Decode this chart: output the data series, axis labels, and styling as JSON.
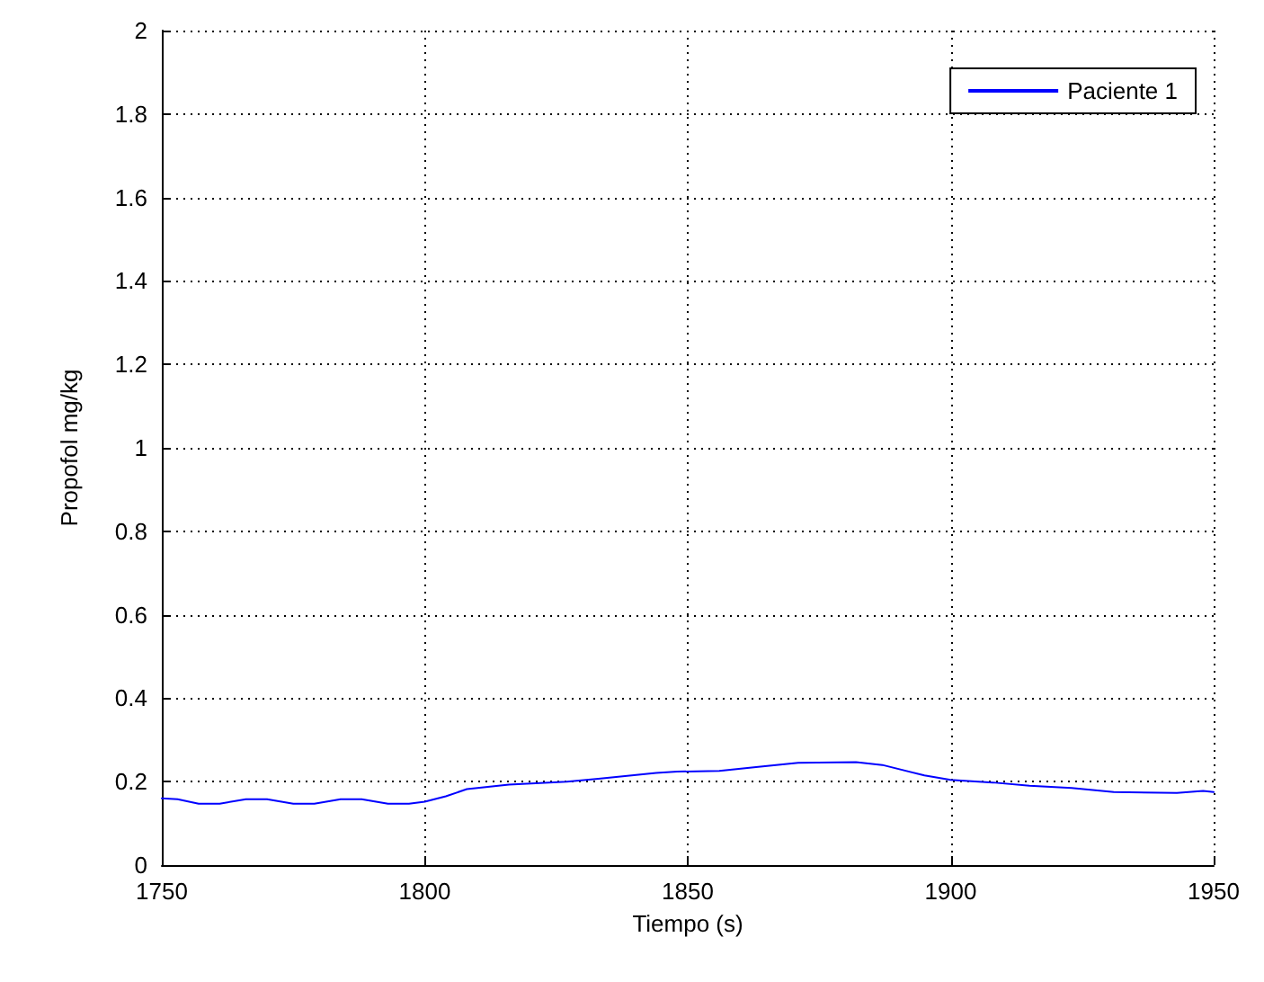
{
  "chart_data": {
    "type": "line",
    "xlabel": "Tiempo (s)",
    "ylabel": "Propofol mg/kg",
    "xlim": [
      1750,
      1950
    ],
    "xticks": [
      1750,
      1800,
      1850,
      1900,
      1950
    ],
    "ylim": [
      0,
      2
    ],
    "yticks": [
      0,
      0.2,
      0.4,
      0.6,
      0.8,
      1,
      1.2,
      1.4,
      1.6,
      1.8,
      2
    ],
    "grid": true,
    "legend": "top right",
    "line_style": "solid",
    "marker": "none",
    "series": [
      {
        "name": "Paciente 1",
        "color": "#0000ff",
        "x": [
          1750,
          1753,
          1757,
          1761,
          1766,
          1770,
          1775,
          1779,
          1784,
          1788,
          1793,
          1797,
          1800,
          1804,
          1808,
          1816,
          1827,
          1833,
          1844,
          1848,
          1856,
          1863,
          1871,
          1882,
          1887,
          1895,
          1900,
          1908,
          1915,
          1923,
          1931,
          1943,
          1948,
          1950
        ],
        "values": [
          0.16,
          0.158,
          0.147,
          0.147,
          0.158,
          0.158,
          0.147,
          0.147,
          0.158,
          0.158,
          0.147,
          0.147,
          0.152,
          0.165,
          0.182,
          0.193,
          0.2,
          0.207,
          0.221,
          0.224,
          0.226,
          0.235,
          0.245,
          0.247,
          0.24,
          0.215,
          0.204,
          0.198,
          0.19,
          0.185,
          0.175,
          0.173,
          0.178,
          0.175
        ]
      }
    ]
  }
}
